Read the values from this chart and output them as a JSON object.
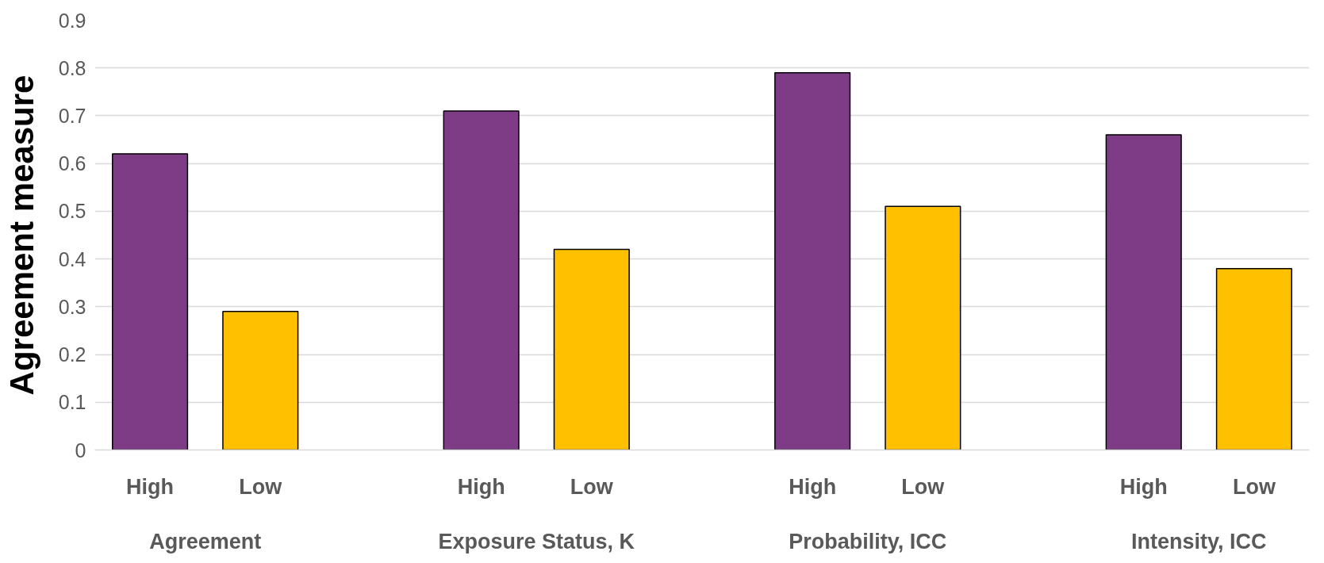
{
  "chart_data": {
    "type": "bar",
    "ylabel": "Agreement measure",
    "categories": [
      "High",
      "Low",
      null,
      "High",
      "Low",
      null,
      "High",
      "Low",
      null,
      "High",
      "Low"
    ],
    "values": [
      0.62,
      0.29,
      null,
      0.71,
      0.42,
      null,
      0.79,
      0.51,
      null,
      0.66,
      0.38
    ],
    "colors": [
      "#7e3c86",
      "#ffc000",
      null,
      "#7e3c86",
      "#ffc000",
      null,
      "#7e3c86",
      "#ffc000",
      null,
      "#7e3c86",
      "#ffc000"
    ],
    "annotations": [
      "Agreement",
      "Exposure Status, K",
      "Probability, ICC",
      "Intensity, ICC"
    ],
    "ylim": [
      0,
      0.9
    ],
    "yticks": [
      0,
      0.1,
      0.2,
      0.3,
      0.4,
      0.5,
      0.6,
      0.7,
      0.8,
      0.9
    ],
    "grid": "y"
  }
}
